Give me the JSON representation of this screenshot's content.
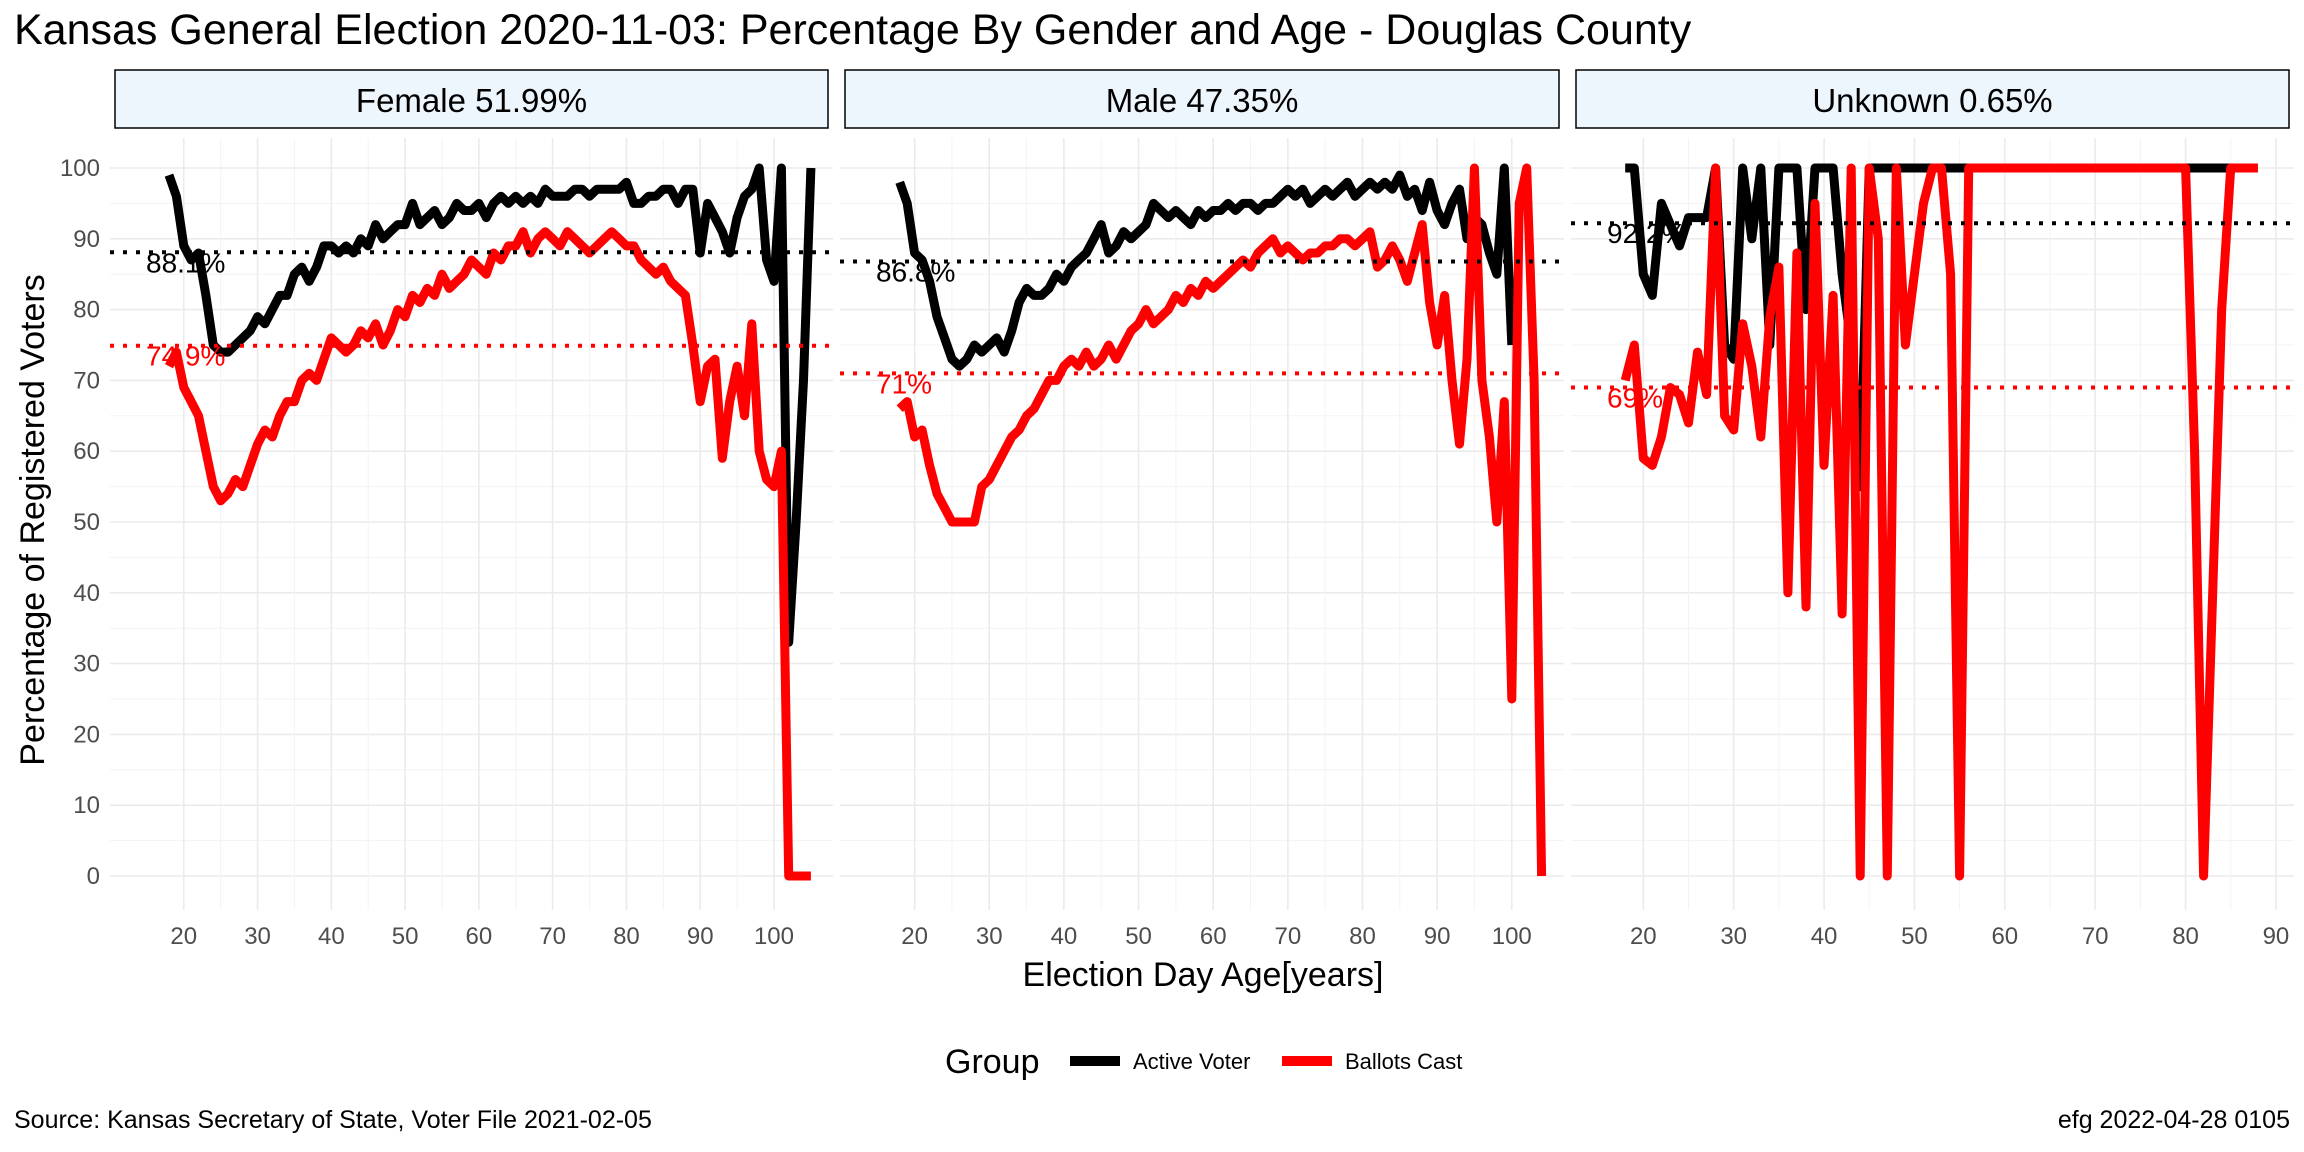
{
  "title": "Kansas General Election 2020-11-03:  Percentage By Gender and Age - Douglas County",
  "source": "Source:  Kansas Secretary of State, Voter File  2021-02-05",
  "stamp": "efg 2022-04-28 0105",
  "colors": {
    "active": "#000000",
    "ballots": "#ff0000",
    "strip_fill": "#eef6fd",
    "grid": "#ebebeb"
  },
  "chart_data": {
    "type": "line",
    "xlabel": "Election Day Age[years]",
    "ylabel": "Percentage of Registered Voters",
    "ylim": [
      0,
      100
    ],
    "y_ticks": [
      0,
      10,
      20,
      30,
      40,
      50,
      60,
      70,
      80,
      90,
      100
    ],
    "legend": {
      "title": "Group",
      "position": "bottom",
      "entries": [
        {
          "name": "Active Voter",
          "color": "#000000"
        },
        {
          "name": "Ballots Cast",
          "color": "#ff0000"
        }
      ]
    },
    "panels": [
      {
        "label": "Female 51.99%",
        "x_ticks": [
          20,
          30,
          40,
          50,
          60,
          70,
          80,
          90,
          100
        ],
        "xlim": [
          10,
          108
        ],
        "ref_lines": [
          {
            "value": 88.1,
            "label": "88.1%",
            "color": "#000000"
          },
          {
            "value": 74.9,
            "label": "74.9%",
            "color": "#ff0000"
          }
        ],
        "series": [
          {
            "name": "Active Voter",
            "color": "#000000",
            "x": [
              18,
              19,
              20,
              21,
              22,
              23,
              24,
              25,
              26,
              27,
              28,
              29,
              30,
              31,
              32,
              33,
              34,
              35,
              36,
              37,
              38,
              39,
              40,
              41,
              42,
              43,
              44,
              45,
              46,
              47,
              48,
              49,
              50,
              51,
              52,
              53,
              54,
              55,
              56,
              57,
              58,
              59,
              60,
              61,
              62,
              63,
              64,
              65,
              66,
              67,
              68,
              69,
              70,
              71,
              72,
              73,
              74,
              75,
              76,
              77,
              78,
              79,
              80,
              81,
              82,
              83,
              84,
              85,
              86,
              87,
              88,
              89,
              90,
              91,
              92,
              93,
              94,
              95,
              96,
              97,
              98,
              99,
              100,
              101,
              102,
              103,
              104,
              105
            ],
            "y": [
              99,
              96,
              89,
              87,
              88,
              82,
              75,
              74,
              74,
              75,
              76,
              77,
              79,
              78,
              80,
              82,
              82,
              85,
              86,
              84,
              86,
              89,
              89,
              88,
              89,
              88,
              90,
              89,
              92,
              90,
              91,
              92,
              92,
              95,
              92,
              93,
              94,
              92,
              93,
              95,
              94,
              94,
              95,
              93,
              95,
              96,
              95,
              96,
              95,
              96,
              95,
              97,
              96,
              96,
              96,
              97,
              97,
              96,
              97,
              97,
              97,
              97,
              98,
              95,
              95,
              96,
              96,
              97,
              97,
              95,
              97,
              97,
              88,
              95,
              93,
              91,
              88,
              93,
              96,
              97,
              100,
              87,
              84,
              100,
              33,
              50,
              70,
              100
            ]
          },
          {
            "name": "Ballots Cast",
            "color": "#ff0000",
            "x": [
              18,
              19,
              20,
              21,
              22,
              23,
              24,
              25,
              26,
              27,
              28,
              29,
              30,
              31,
              32,
              33,
              34,
              35,
              36,
              37,
              38,
              39,
              40,
              41,
              42,
              43,
              44,
              45,
              46,
              47,
              48,
              49,
              50,
              51,
              52,
              53,
              54,
              55,
              56,
              57,
              58,
              59,
              60,
              61,
              62,
              63,
              64,
              65,
              66,
              67,
              68,
              69,
              70,
              71,
              72,
              73,
              74,
              75,
              76,
              77,
              78,
              79,
              80,
              81,
              82,
              83,
              84,
              85,
              86,
              87,
              88,
              89,
              90,
              91,
              92,
              93,
              94,
              95,
              96,
              97,
              98,
              99,
              100,
              101,
              102,
              103,
              104,
              105
            ],
            "y": [
              72,
              74,
              69,
              67,
              65,
              60,
              55,
              53,
              54,
              56,
              55,
              58,
              61,
              63,
              62,
              65,
              67,
              67,
              70,
              71,
              70,
              73,
              76,
              75,
              74,
              75,
              77,
              76,
              78,
              75,
              77,
              80,
              79,
              82,
              81,
              83,
              82,
              85,
              83,
              84,
              85,
              87,
              86,
              85,
              88,
              87,
              89,
              89,
              91,
              88,
              90,
              91,
              90,
              89,
              91,
              90,
              89,
              88,
              89,
              90,
              91,
              90,
              89,
              89,
              87,
              86,
              85,
              86,
              84,
              83,
              82,
              75,
              67,
              72,
              73,
              59,
              67,
              72,
              65,
              78,
              60,
              56,
              55,
              60,
              0,
              0,
              0,
              0
            ]
          }
        ]
      },
      {
        "label": "Male 47.35%",
        "x_ticks": [
          20,
          30,
          40,
          50,
          60,
          70,
          80,
          90,
          100
        ],
        "xlim": [
          10,
          107
        ],
        "ref_lines": [
          {
            "value": 86.8,
            "label": "86.8%",
            "color": "#000000"
          },
          {
            "value": 71,
            "label": "71%",
            "color": "#ff0000"
          }
        ],
        "series": [
          {
            "name": "Active Voter",
            "color": "#000000",
            "x": [
              18,
              19,
              20,
              21,
              22,
              23,
              24,
              25,
              26,
              27,
              28,
              29,
              30,
              31,
              32,
              33,
              34,
              35,
              36,
              37,
              38,
              39,
              40,
              41,
              42,
              43,
              44,
              45,
              46,
              47,
              48,
              49,
              50,
              51,
              52,
              53,
              54,
              55,
              56,
              57,
              58,
              59,
              60,
              61,
              62,
              63,
              64,
              65,
              66,
              67,
              68,
              69,
              70,
              71,
              72,
              73,
              74,
              75,
              76,
              77,
              78,
              79,
              80,
              81,
              82,
              83,
              84,
              85,
              86,
              87,
              88,
              89,
              90,
              91,
              92,
              93,
              94,
              95,
              96,
              97,
              98,
              99,
              100
            ],
            "y": [
              98,
              95,
              88,
              87,
              84,
              79,
              76,
              73,
              72,
              73,
              75,
              74,
              75,
              76,
              74,
              77,
              81,
              83,
              82,
              82,
              83,
              85,
              84,
              86,
              87,
              88,
              90,
              92,
              88,
              89,
              91,
              90,
              91,
              92,
              95,
              94,
              93,
              94,
              93,
              92,
              94,
              93,
              94,
              94,
              95,
              94,
              95,
              95,
              94,
              95,
              95,
              96,
              97,
              96,
              97,
              95,
              96,
              97,
              96,
              97,
              98,
              96,
              97,
              98,
              97,
              98,
              97,
              99,
              96,
              97,
              94,
              98,
              94,
              92,
              95,
              97,
              90,
              93,
              92,
              88,
              85,
              100,
              75
            ]
          },
          {
            "name": "Ballots Cast",
            "color": "#ff0000",
            "x": [
              18,
              19,
              20,
              21,
              22,
              23,
              24,
              25,
              26,
              27,
              28,
              29,
              30,
              31,
              32,
              33,
              34,
              35,
              36,
              37,
              38,
              39,
              40,
              41,
              42,
              43,
              44,
              45,
              46,
              47,
              48,
              49,
              50,
              51,
              52,
              53,
              54,
              55,
              56,
              57,
              58,
              59,
              60,
              61,
              62,
              63,
              64,
              65,
              66,
              67,
              68,
              69,
              70,
              71,
              72,
              73,
              74,
              75,
              76,
              77,
              78,
              79,
              80,
              81,
              82,
              83,
              84,
              85,
              86,
              87,
              88,
              89,
              90,
              91,
              92,
              93,
              94,
              95,
              96,
              97,
              98,
              99,
              100,
              101,
              102,
              103,
              104
            ],
            "y": [
              66,
              67,
              62,
              63,
              58,
              54,
              52,
              50,
              50,
              50,
              50,
              55,
              56,
              58,
              60,
              62,
              63,
              65,
              66,
              68,
              70,
              70,
              72,
              73,
              72,
              74,
              72,
              73,
              75,
              73,
              75,
              77,
              78,
              80,
              78,
              79,
              80,
              82,
              81,
              83,
              82,
              84,
              83,
              84,
              85,
              86,
              87,
              86,
              88,
              89,
              90,
              88,
              89,
              88,
              87,
              88,
              88,
              89,
              89,
              90,
              90,
              89,
              90,
              91,
              86,
              87,
              89,
              87,
              84,
              88,
              92,
              81,
              75,
              82,
              70,
              61,
              73,
              100,
              70,
              62,
              50,
              67,
              25,
              95,
              100,
              70,
              0
            ]
          }
        ]
      },
      {
        "label": "Unknown 0.65%",
        "x_ticks": [
          20,
          30,
          40,
          50,
          60,
          70,
          80,
          90
        ],
        "xlim": [
          12,
          92
        ],
        "ref_lines": [
          {
            "value": 92.2,
            "label": "92.2%",
            "color": "#000000"
          },
          {
            "value": 69,
            "label": "69%",
            "color": "#ff0000"
          }
        ],
        "series": [
          {
            "name": "Active Voter",
            "color": "#000000",
            "x": [
              18,
              19,
              20,
              21,
              22,
              23,
              24,
              25,
              26,
              27,
              28,
              29,
              30,
              31,
              32,
              33,
              34,
              35,
              36,
              37,
              38,
              39,
              40,
              41,
              42,
              43,
              44,
              45,
              46,
              47,
              48,
              49,
              50,
              55,
              60,
              65,
              70,
              75,
              80,
              85,
              88
            ],
            "y": [
              100,
              100,
              85,
              82,
              95,
              92,
              89,
              93,
              93,
              93,
              100,
              75,
              73,
              100,
              90,
              100,
              75,
              100,
              100,
              100,
              80,
              100,
              100,
              100,
              85,
              75,
              55,
              100,
              100,
              100,
              100,
              100,
              100,
              100,
              100,
              100,
              100,
              100,
              100,
              100,
              100
            ]
          },
          {
            "name": "Ballots Cast",
            "color": "#ff0000",
            "x": [
              18,
              19,
              20,
              21,
              22,
              23,
              24,
              25,
              26,
              27,
              28,
              29,
              30,
              31,
              32,
              33,
              34,
              35,
              36,
              37,
              38,
              39,
              40,
              41,
              42,
              43,
              44,
              45,
              46,
              47,
              48,
              49,
              50,
              51,
              52,
              53,
              54,
              55,
              56,
              60,
              65,
              70,
              75,
              80,
              81,
              82,
              83,
              84,
              85,
              86,
              87,
              88
            ],
            "y": [
              70,
              75,
              59,
              58,
              62,
              69,
              68,
              64,
              74,
              68,
              100,
              65,
              63,
              78,
              72,
              62,
              79,
              86,
              40,
              88,
              38,
              95,
              58,
              82,
              37,
              100,
              0,
              100,
              90,
              0,
              100,
              75,
              85,
              95,
              100,
              100,
              85,
              0,
              100,
              100,
              100,
              100,
              100,
              100,
              60,
              0,
              40,
              80,
              100,
              100,
              100,
              100
            ]
          }
        ]
      }
    ]
  }
}
